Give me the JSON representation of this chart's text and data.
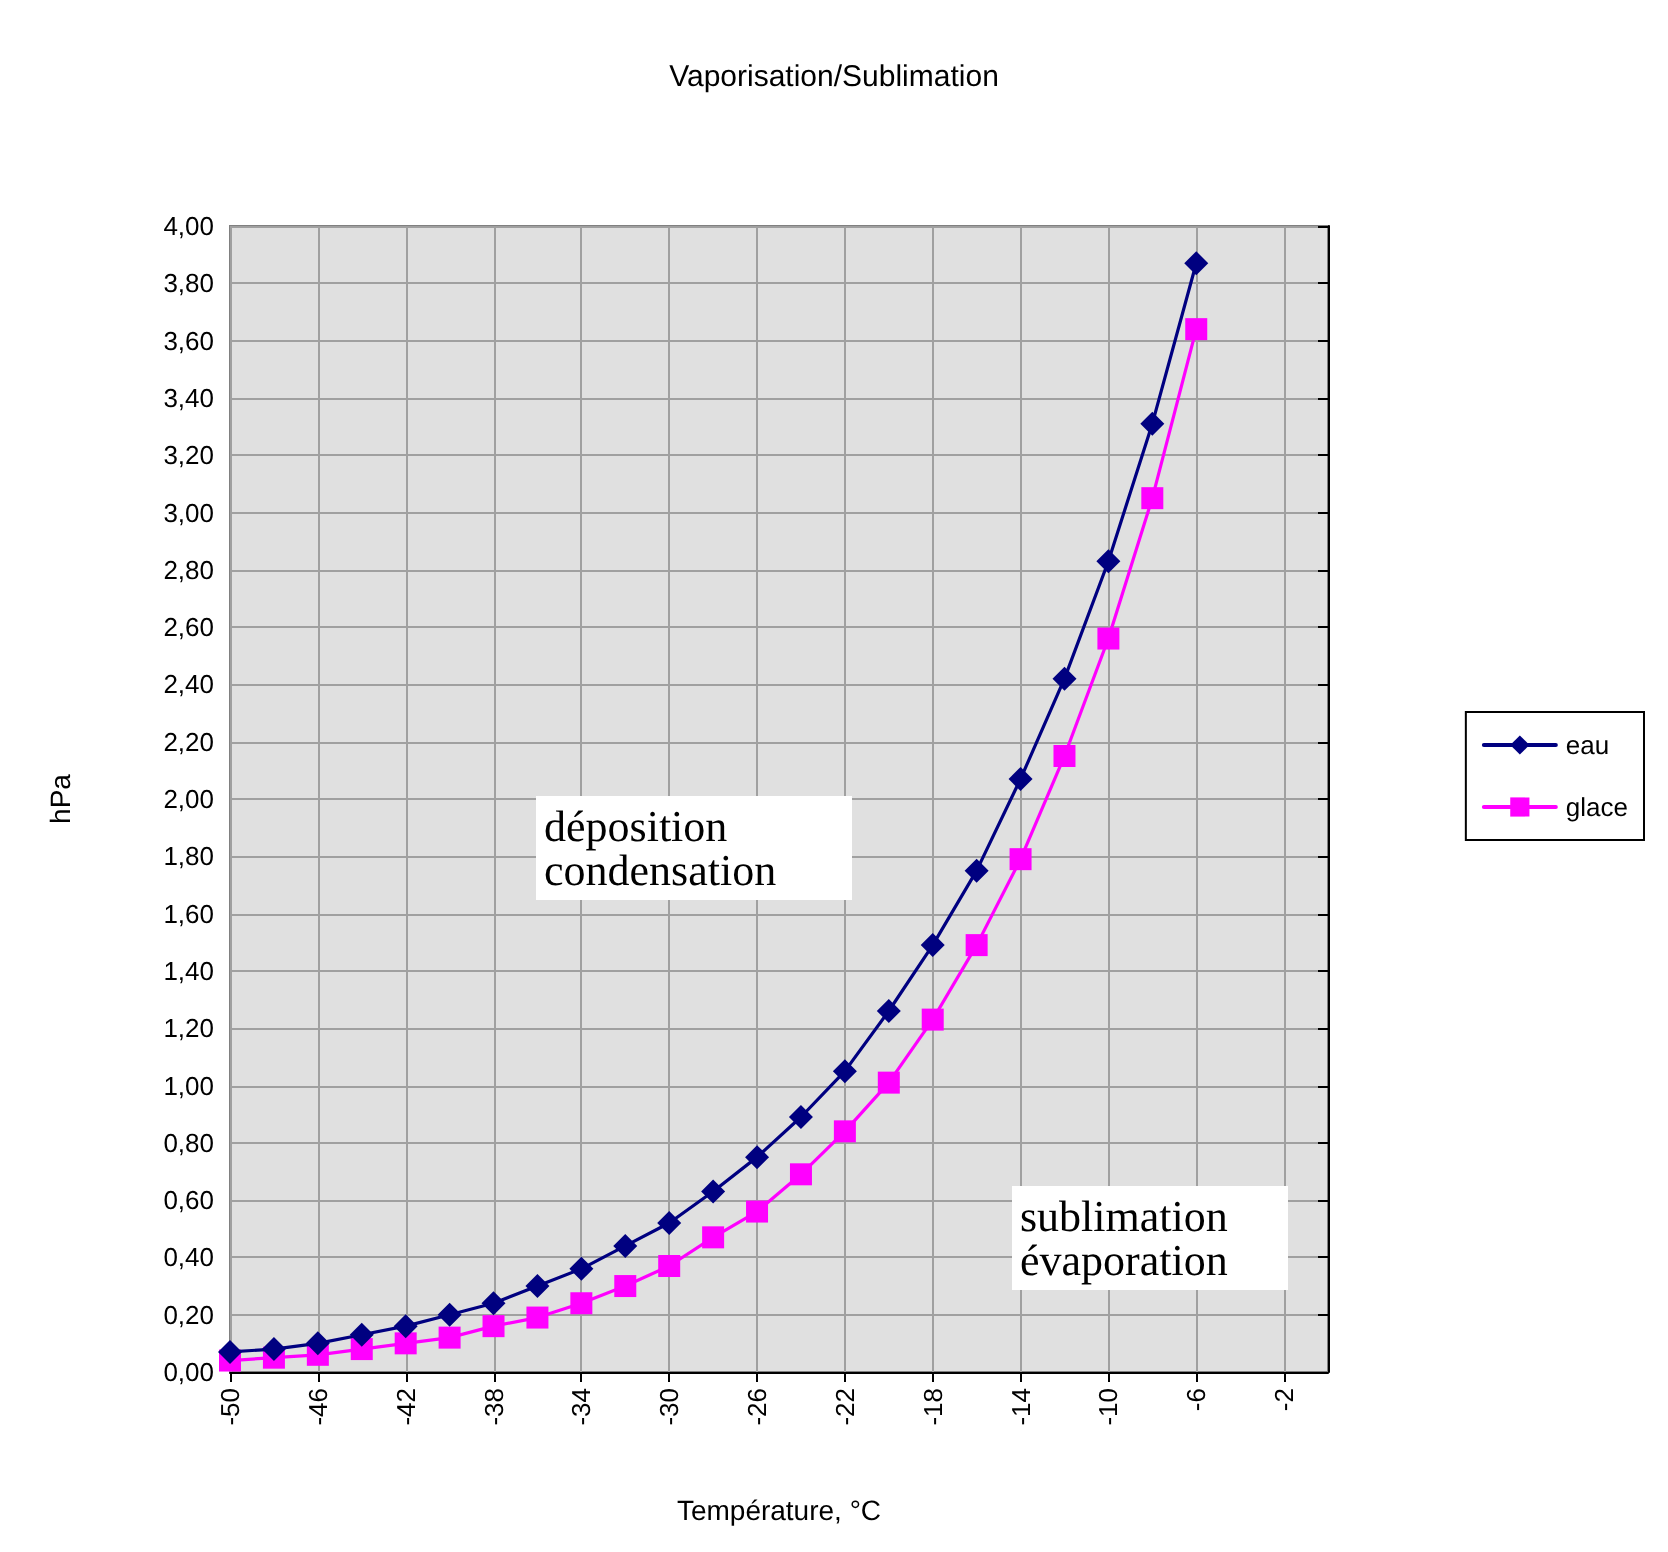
{
  "chart_data": {
    "type": "line",
    "title": "Vaporisation/Sublimation",
    "xlabel": "Température, °C",
    "ylabel": "hPa",
    "x": [
      -50,
      -48,
      -46,
      -44,
      -42,
      -40,
      -38,
      -36,
      -34,
      -32,
      -30,
      -28,
      -26,
      -24,
      -22,
      -20,
      -18,
      -16,
      -14,
      -12,
      -10,
      -8,
      -6
    ],
    "series": [
      {
        "name": "eau",
        "color": "#000080",
        "marker": "diamond",
        "values": [
          0.07,
          0.08,
          0.1,
          0.13,
          0.16,
          0.2,
          0.24,
          0.3,
          0.36,
          0.44,
          0.52,
          0.63,
          0.75,
          0.89,
          1.05,
          1.26,
          1.49,
          1.75,
          2.07,
          2.42,
          2.83,
          3.31,
          3.87
        ]
      },
      {
        "name": "glace",
        "color": "#ff00ff",
        "marker": "square",
        "values": [
          0.04,
          0.05,
          0.06,
          0.08,
          0.1,
          0.12,
          0.16,
          0.19,
          0.24,
          0.3,
          0.37,
          0.47,
          0.56,
          0.69,
          0.84,
          1.01,
          1.23,
          1.49,
          1.79,
          2.15,
          2.56,
          3.05,
          3.64
        ]
      }
    ],
    "xlim": [
      -50,
      0
    ],
    "xticks": [
      -50,
      -46,
      -42,
      -38,
      -34,
      -30,
      -26,
      -22,
      -18,
      -14,
      -10,
      -6,
      -2
    ],
    "ylim": [
      0,
      4
    ],
    "yticks": [
      {
        "value": 0,
        "label": "0,00"
      },
      {
        "value": 0.2,
        "label": "0,20"
      },
      {
        "value": 0.4,
        "label": "0,40"
      },
      {
        "value": 0.6,
        "label": "0,60"
      },
      {
        "value": 0.8,
        "label": "0,80"
      },
      {
        "value": 1,
        "label": "1,00"
      },
      {
        "value": 1.2,
        "label": "1,20"
      },
      {
        "value": 1.4,
        "label": "1,40"
      },
      {
        "value": 1.6,
        "label": "1,60"
      },
      {
        "value": 1.8,
        "label": "1,80"
      },
      {
        "value": 2,
        "label": "2,00"
      },
      {
        "value": 2.2,
        "label": "2,20"
      },
      {
        "value": 2.4,
        "label": "2,40"
      },
      {
        "value": 2.6,
        "label": "2,60"
      },
      {
        "value": 2.8,
        "label": "2,80"
      },
      {
        "value": 3,
        "label": "3,00"
      },
      {
        "value": 3.2,
        "label": "3,20"
      },
      {
        "value": 3.4,
        "label": "3,40"
      },
      {
        "value": 3.6,
        "label": "3,60"
      },
      {
        "value": 3.8,
        "label": "3,80"
      },
      {
        "value": 4,
        "label": "4,00"
      }
    ],
    "annotations": [
      "déposition condensation",
      "sublimation évaporation"
    ],
    "grid": true,
    "legend": "right",
    "line_style": "solid"
  }
}
